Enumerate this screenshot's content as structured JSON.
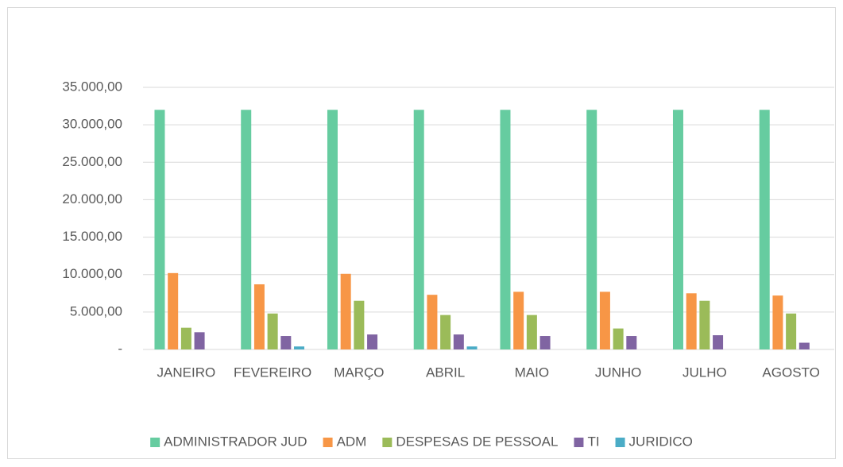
{
  "chart_data": {
    "type": "bar",
    "categories": [
      "JANEIRO",
      "FEVEREIRO",
      "MARÇO",
      "ABRIL",
      "MAIO",
      "JUNHO",
      "JULHO",
      "AGOSTO"
    ],
    "series": [
      {
        "name": "ADMINISTRADOR JUD",
        "color": "#66cca0",
        "values": [
          32000,
          32000,
          32000,
          32000,
          32000,
          32000,
          32000,
          32000
        ]
      },
      {
        "name": "ADM",
        "color": "#f79646",
        "values": [
          10200,
          8700,
          10100,
          7300,
          7700,
          7700,
          7500,
          7200
        ]
      },
      {
        "name": "DESPESAS DE PESSOAL",
        "color": "#9bbb59",
        "values": [
          2900,
          4800,
          6500,
          4600,
          4600,
          2800,
          6500,
          4800
        ]
      },
      {
        "name": "TI",
        "color": "#8064a2",
        "values": [
          2300,
          1800,
          2000,
          2000,
          1800,
          1800,
          1900,
          900
        ]
      },
      {
        "name": "JURIDICO",
        "color": "#4bacc6",
        "values": [
          0,
          400,
          0,
          400,
          0,
          0,
          0,
          0
        ]
      }
    ],
    "ylim": [
      0,
      35000
    ],
    "yticks": [
      {
        "value": 0,
        "label": "-"
      },
      {
        "value": 5000,
        "label": "5.000,00"
      },
      {
        "value": 10000,
        "label": "10.000,00"
      },
      {
        "value": 15000,
        "label": "15.000,00"
      },
      {
        "value": 20000,
        "label": "20.000,00"
      },
      {
        "value": 25000,
        "label": "25.000,00"
      },
      {
        "value": 30000,
        "label": "30.000,00"
      },
      {
        "value": 35000,
        "label": "35.000,00"
      }
    ],
    "grid": true,
    "legend": "bottom"
  }
}
